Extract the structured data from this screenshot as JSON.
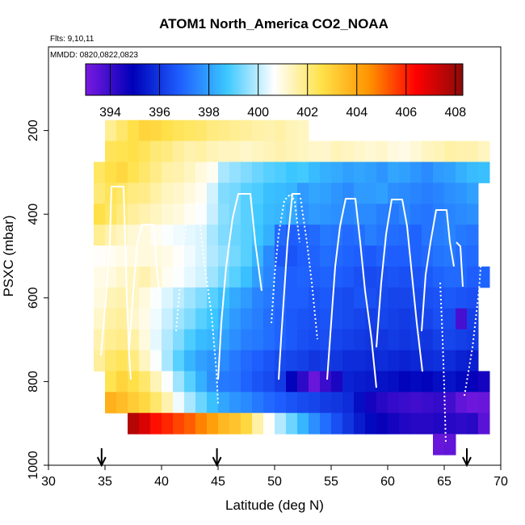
{
  "chart_data": {
    "type": "heatmap",
    "title": "ATOM1 North_America CO2_NOAA",
    "flights_note": "Flts: 9,10,11",
    "dates_note": "MMDD: 0820,0822,0823",
    "xlabel": "Latitude (deg N)",
    "ylabel": "PSXC (mbar)",
    "xlim": [
      30,
      70
    ],
    "ylim": [
      1000,
      0
    ],
    "x_ticks": [
      "30",
      "35",
      "40",
      "45",
      "50",
      "55",
      "60",
      "65",
      "70"
    ],
    "y_ticks": [
      "200",
      "400",
      "600",
      "800",
      "1000"
    ],
    "colorbar": {
      "min": 393,
      "max": 408.3,
      "tick_labels": [
        "394",
        "396",
        "398",
        "400",
        "402",
        "404",
        "406",
        "408"
      ],
      "colors": [
        "#7a1ae0",
        "#0000b8",
        "#1e5fff",
        "#3cc8ff",
        "#ffffff",
        "#ffe24a",
        "#ff9500",
        "#ff0000",
        "#8b0a0a"
      ]
    },
    "bin_size": {
      "lat": 1,
      "pressure": 50
    },
    "cells_by_pressure": [
      {
        "p": 200,
        "lat_start": 35,
        "values": [
          401.8,
          402.2,
          402.6,
          402.9,
          402.8,
          402.6,
          402.4,
          402.3,
          402.2,
          402.0,
          401.9,
          401.8,
          401.7,
          401.6,
          401.5,
          401.6,
          401.4,
          401.3
        ]
      },
      {
        "p": 250,
        "lat_start": 35,
        "values": [
          402.4,
          402.5,
          402.6,
          402.4,
          402.1,
          402.0,
          401.7,
          401.5,
          401.6,
          401.4,
          401.3,
          401.3,
          401.2,
          401.3,
          401.4,
          401.5,
          401.4,
          401.3,
          401.2,
          401.2,
          401.4,
          401.3,
          401.2,
          401.1,
          401.2,
          401.0,
          400.9,
          401.1,
          401.3,
          401.4,
          401.6,
          401.5,
          401.5,
          401.3
        ]
      },
      {
        "p": 300,
        "lat_start": 34,
        "values": [
          402.3,
          402.6,
          402.8,
          402.5,
          402.2,
          401.9,
          401.6,
          401.5,
          401.3,
          401.0,
          400.8,
          399.8,
          399.6,
          399.4,
          399.2,
          399.0,
          398.9,
          398.7,
          398.8,
          398.5,
          398.3,
          398.2,
          398.0,
          398.1,
          398.0,
          397.8,
          398.1,
          398.0,
          397.8,
          397.6,
          397.9,
          398.0,
          398.3,
          398.5,
          398.6
        ]
      },
      {
        "p": 350,
        "lat_start": 34,
        "values": [
          402.1,
          402.4,
          402.2,
          402.0,
          401.9,
          401.6,
          401.3,
          401.2,
          401.0,
          400.8,
          400.2,
          399.4,
          399.3,
          399.0,
          398.9,
          398.6,
          398.5,
          398.4,
          397.9,
          398.1,
          398.0,
          397.8,
          397.6,
          397.9,
          397.9,
          398.0,
          397.7,
          397.6,
          397.5,
          397.4,
          397.5,
          397.7,
          397.8,
          398.0
        ]
      },
      {
        "p": 400,
        "lat_start": 34,
        "values": [
          402.6,
          402.3,
          402.0,
          401.7,
          401.5,
          401.3,
          401.1,
          401.0,
          400.8,
          400.6,
          400.1,
          399.5,
          399.3,
          399.0,
          398.8,
          398.5,
          398.4,
          398.2,
          397.7,
          397.9,
          397.8,
          397.7,
          397.5,
          397.6,
          397.6,
          397.4,
          397.3,
          397.5,
          397.3,
          397.2,
          397.4,
          397.5,
          397.6,
          397.7
        ]
      },
      {
        "p": 450,
        "lat_start": 34,
        "values": [
          401.8,
          401.5,
          401.3,
          401.1,
          401.0,
          400.8,
          400.6,
          400.5,
          400.4,
          400.3,
          399.8,
          399.4,
          399.2,
          399.0,
          398.7,
          398.3,
          397.0,
          396.8,
          396.9,
          397.0,
          397.3,
          397.2,
          397.0,
          397.1,
          397.4,
          397.2,
          397.1,
          397.0,
          396.9,
          397.2,
          397.4,
          397.5,
          397.3,
          397.2
        ]
      },
      {
        "p": 500,
        "lat_start": 34,
        "values": [
          400.7,
          400.8,
          400.9,
          401.0,
          401.0,
          401.0,
          400.9,
          400.7,
          400.5,
          400.3,
          399.9,
          399.6,
          399.3,
          399.0,
          398.4,
          397.6,
          396.7,
          396.6,
          396.8,
          396.9,
          397.1,
          397.0,
          396.9,
          396.8,
          396.7,
          396.9,
          396.8,
          396.8,
          396.9,
          397.0,
          397.2,
          397.3,
          397.1,
          397.0
        ]
      },
      {
        "p": 550,
        "lat_start": 34,
        "values": [
          400.9,
          401.0,
          401.2,
          401.3,
          401.5,
          401.2,
          400.8,
          400.6,
          400.4,
          400.2,
          399.7,
          399.3,
          399.0,
          398.6,
          398.0,
          397.5,
          397.0,
          396.8,
          396.9,
          396.8,
          396.9,
          396.8,
          396.7,
          396.5,
          396.4,
          396.5,
          396.6,
          396.5,
          396.6,
          396.7,
          396.9,
          397.0,
          397.0,
          396.8,
          396.9
        ]
      },
      {
        "p": 600,
        "lat_start": 34,
        "values": [
          401.0,
          401.4,
          401.5,
          401.3,
          401.0,
          400.6,
          400.3,
          400.0,
          399.7,
          399.4,
          399.0,
          398.6,
          398.2,
          397.9,
          397.5,
          397.3,
          397.0,
          396.8,
          396.8,
          396.6,
          396.7,
          396.5,
          396.4,
          396.6,
          396.5,
          396.4,
          396.3,
          396.3,
          396.4,
          396.5,
          396.6,
          396.7,
          396.6,
          396.5
        ]
      },
      {
        "p": 650,
        "lat_start": 34,
        "values": [
          401.2,
          401.6,
          401.7,
          401.2,
          400.9,
          400.5,
          400.1,
          399.7,
          399.4,
          399.0,
          398.7,
          398.3,
          397.9,
          397.6,
          397.4,
          397.1,
          396.9,
          396.7,
          396.6,
          396.5,
          396.6,
          396.5,
          396.4,
          396.3,
          396.2,
          396.3,
          396.2,
          396.1,
          396.2,
          396.3,
          396.5,
          396.4,
          393.8,
          396.2
        ]
      },
      {
        "p": 700,
        "lat_start": 34,
        "values": [
          401.5,
          401.8,
          401.9,
          401.6,
          401.0,
          400.4,
          399.9,
          399.4,
          398.9,
          398.5,
          398.4,
          398.0,
          397.7,
          397.4,
          397.3,
          397.1,
          396.9,
          396.7,
          396.5,
          396.4,
          396.5,
          396.3,
          396.2,
          396.1,
          396.0,
          396.0,
          396.1,
          396.0,
          396.1,
          396.0,
          396.2,
          396.3,
          396.2,
          396.1
        ]
      },
      {
        "p": 750,
        "lat_start": 34,
        "values": [
          401.7,
          402.2,
          402.4,
          402.0,
          401.3,
          400.6,
          399.8,
          399.0,
          398.4,
          398.0,
          397.8,
          397.6,
          397.3,
          397.0,
          396.8,
          396.6,
          396.4,
          396.3,
          396.2,
          396.0,
          396.1,
          396.0,
          395.8,
          395.8,
          395.7,
          395.8,
          395.7,
          395.6,
          395.7,
          395.8,
          395.9,
          395.8,
          395.6,
          395.5
        ]
      },
      {
        "p": 800,
        "lat_start": 35,
        "values": [
          402.5,
          402.9,
          402.6,
          402.2,
          401.4,
          400.6,
          399.7,
          399.0,
          398.3,
          397.7,
          397.3,
          397.2,
          396.9,
          396.6,
          396.4,
          396.1,
          395.0,
          394.2,
          393.3,
          394.0,
          394.5,
          395.6,
          395.5,
          395.4,
          395.3,
          395.2,
          395.0,
          395.1,
          395.0,
          395.2,
          395.3,
          395.1,
          394.8,
          394.6
        ]
      },
      {
        "p": 850,
        "lat_start": 35,
        "values": [
          403.8,
          403.5,
          403.1,
          402.8,
          402.2,
          401.5,
          400.5,
          399.8,
          399.2,
          398.6,
          398.1,
          397.8,
          397.6,
          397.3,
          397.0,
          396.8,
          396.6,
          396.4,
          396.3,
          396.1,
          396.0,
          395.8,
          395.2,
          394.6,
          394.3,
          394.1,
          394.0,
          393.9,
          394.0,
          394.1,
          393.9,
          393.4,
          393.2,
          393.3
        ]
      },
      {
        "p": 900,
        "lat_start": 37,
        "values": [
          407.6,
          407.0,
          406.2,
          405.9,
          405.5,
          405.2,
          404.7,
          404.2,
          403.6,
          403.3,
          402.8,
          401.6,
          400.7,
          399.9,
          399.2,
          398.4,
          397.7,
          397.1,
          396.5,
          396.0,
          395.5,
          395.1,
          394.8,
          394.6,
          394.4,
          394.3,
          394.3,
          394.4,
          394.3,
          394.2,
          394.3,
          393.5
        ]
      },
      {
        "p": 950,
        "lat_start": 64,
        "values": [
          393.3,
          393.4
        ]
      }
    ],
    "flight_track_note": "white vertical-profile flight tracks",
    "arrow_markers_lat": [
      34.7,
      44.9,
      67.0
    ]
  }
}
